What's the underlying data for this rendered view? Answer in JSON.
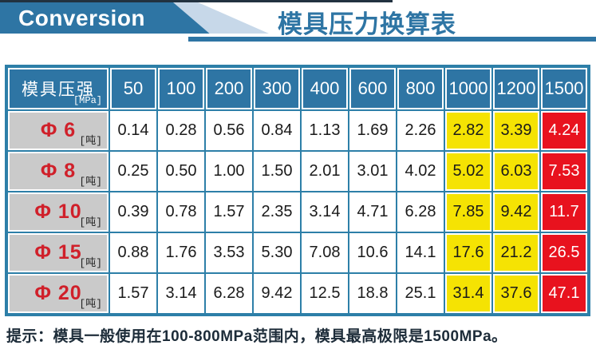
{
  "header": {
    "banner_label": "Conversion",
    "title": "模具压力换算表"
  },
  "colors": {
    "brand_blue": "#2e75a4",
    "grid_blue": "#2d7fa8",
    "light_blue_stripe": "#c7d8e9",
    "label_gray": "#cacaca",
    "label_red_text": "#d0202a",
    "highlight_yellow": "#f5e303",
    "highlight_red": "#e8121e",
    "top_line_dark": "#223240"
  },
  "table": {
    "corner": {
      "label": "模具压强",
      "unit": "[MPa]"
    },
    "pressure_columns": [
      "50",
      "100",
      "200",
      "300",
      "400",
      "600",
      "800",
      "1000",
      "1200",
      "1500"
    ],
    "row_unit": "[吨]",
    "rows": [
      {
        "label": "Φ 6",
        "values": [
          "0.14",
          "0.28",
          "0.56",
          "0.84",
          "1.13",
          "1.69",
          "2.26",
          "2.82",
          "3.39",
          "4.24"
        ]
      },
      {
        "label": "Φ 8",
        "values": [
          "0.25",
          "0.50",
          "1.00",
          "1.50",
          "2.01",
          "3.01",
          "4.02",
          "5.02",
          "6.03",
          "7.53"
        ]
      },
      {
        "label": "Φ 10",
        "values": [
          "0.39",
          "0.78",
          "1.57",
          "2.35",
          "3.14",
          "4.71",
          "6.28",
          "7.85",
          "9.42",
          "11.7"
        ]
      },
      {
        "label": "Φ 15",
        "values": [
          "0.88",
          "1.76",
          "3.53",
          "5.30",
          "7.08",
          "10.6",
          "14.1",
          "17.6",
          "21.2",
          "26.5"
        ]
      },
      {
        "label": "Φ 20",
        "values": [
          "1.57",
          "3.14",
          "6.28",
          "9.42",
          "12.5",
          "18.8",
          "25.1",
          "31.4",
          "37.6",
          "47.1"
        ]
      }
    ],
    "highlight": {
      "yellow_columns": [
        "1000",
        "1200"
      ],
      "red_columns": [
        "1500"
      ]
    }
  },
  "footer": {
    "tip": "提示：模具一般使用在100-800MPa范围内，模具最高极限是1500MPa。"
  }
}
